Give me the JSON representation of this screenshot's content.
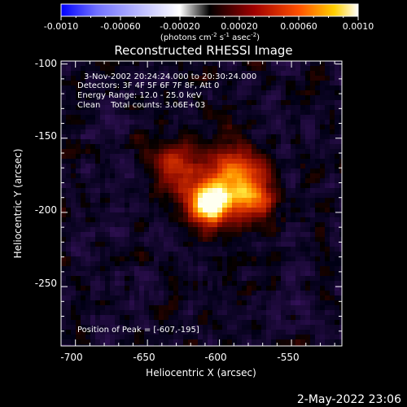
{
  "colorbar": {
    "ticks": [
      "-0.0010",
      "-0.00060",
      "-0.00020",
      "0.00020",
      "0.00060",
      "0.0010"
    ],
    "units_prefix": "(photons cm",
    "units_exp1": "-2",
    "units_mid1": " s",
    "units_exp2": "-1",
    "units_mid2": " asec",
    "units_exp3": "-2",
    "units_suffix": ")",
    "colors": [
      "#0000ff",
      "#ffffff",
      "#000000",
      "#7a0000",
      "#ff4000",
      "#ffd000",
      "#ffffff"
    ]
  },
  "title": "Reconstructed RHESSI Image",
  "info": {
    "line1": "3-Nov-2002 20:24:24.000 to 20:30:24.000",
    "line2": "Detectors: 3F 4F 5F 6F 7F 8F, Att 0",
    "line3": "Energy Range: 12.0 - 25.0 keV",
    "line4": "Clean    Total counts: 3.06E+03"
  },
  "peak_label": "Position of Peak = [-607,-195]",
  "timestamp": "2-May-2022 23:06",
  "chart_data": {
    "type": "heatmap",
    "title": "Reconstructed RHESSI Image",
    "xlabel": "Heliocentric X (arcsec)",
    "ylabel": "Heliocentric Y (arcsec)",
    "xlim": [
      -710,
      -515
    ],
    "ylim": [
      -290,
      -98
    ],
    "x_ticks": [
      "-700",
      "-650",
      "-600",
      "-550"
    ],
    "y_ticks": [
      "-100",
      "-150",
      "-200",
      "-250"
    ],
    "x_tick_values": [
      -700,
      -650,
      -600,
      -550
    ],
    "y_tick_values": [
      -100,
      -150,
      -200,
      -250
    ],
    "peak": {
      "x": -607,
      "y": -195
    },
    "sources": [
      {
        "x": -607,
        "y": -195,
        "amplitude": 0.001,
        "sigma": 10
      },
      {
        "x": -590,
        "y": -175,
        "amplitude": 0.0006,
        "sigma": 14
      },
      {
        "x": -578,
        "y": -190,
        "amplitude": 0.0005,
        "sigma": 10
      },
      {
        "x": -630,
        "y": -170,
        "amplitude": 0.0004,
        "sigma": 12
      }
    ],
    "background_range": [
      -0.0003,
      0.0002
    ]
  }
}
